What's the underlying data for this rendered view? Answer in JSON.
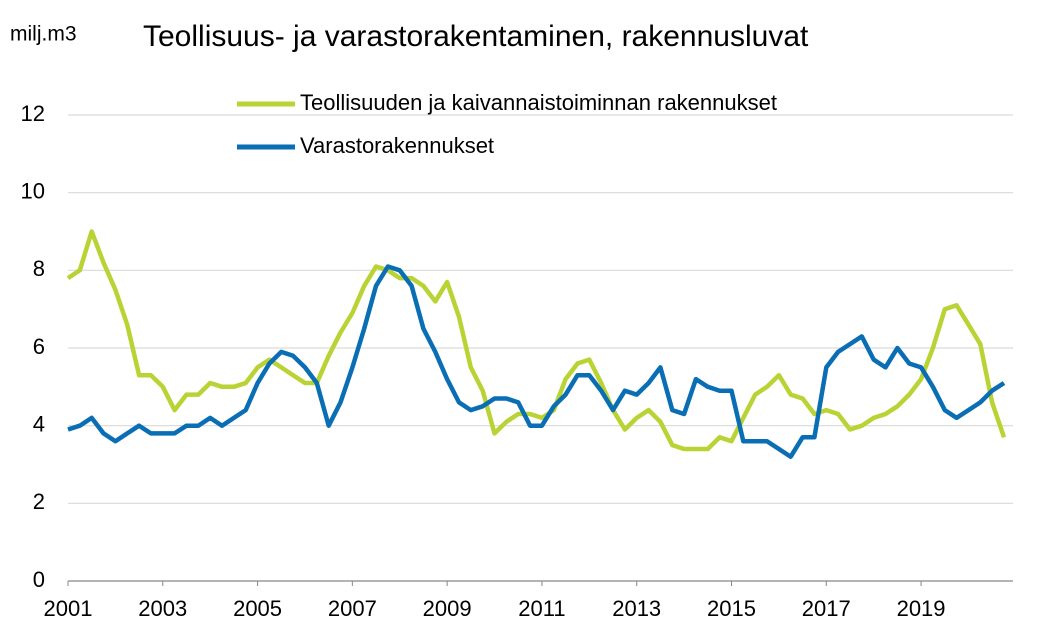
{
  "chart_data": {
    "type": "line",
    "title": "Teollisuus- ja varastorakentaminen, rakennusluvat",
    "y_label": "milj.m3",
    "x": [
      2001,
      2001.25,
      2001.5,
      2001.75,
      2002,
      2002.25,
      2002.5,
      2002.75,
      2003,
      2003.25,
      2003.5,
      2003.75,
      2004,
      2004.25,
      2004.5,
      2004.75,
      2005,
      2005.25,
      2005.5,
      2005.75,
      2006,
      2006.25,
      2006.5,
      2006.75,
      2007,
      2007.25,
      2007.5,
      2007.75,
      2008,
      2008.25,
      2008.5,
      2008.75,
      2009,
      2009.25,
      2009.5,
      2009.75,
      2010,
      2010.25,
      2010.5,
      2010.75,
      2011,
      2011.25,
      2011.5,
      2011.75,
      2012,
      2012.25,
      2012.5,
      2012.75,
      2013,
      2013.25,
      2013.5,
      2013.75,
      2014,
      2014.25,
      2014.5,
      2014.75,
      2015,
      2015.25,
      2015.5,
      2015.75,
      2016,
      2016.25,
      2016.5,
      2016.75,
      2017,
      2017.25,
      2017.5,
      2017.75,
      2018,
      2018.25,
      2018.5,
      2018.75,
      2019,
      2019.25,
      2019.5,
      2019.75,
      2020,
      2020.25,
      2020.5,
      2020.75
    ],
    "series": [
      {
        "name": "Teollisuuden ja kaivannaistoiminnan rakennukset",
        "color": "#b9d334",
        "values": [
          7.8,
          8.0,
          9.0,
          8.2,
          7.5,
          6.6,
          5.3,
          5.3,
          5.0,
          4.4,
          4.8,
          4.8,
          5.1,
          5.0,
          5.0,
          5.1,
          5.5,
          5.7,
          5.5,
          5.3,
          5.1,
          5.1,
          5.8,
          6.4,
          6.9,
          7.6,
          8.1,
          8.0,
          7.8,
          7.8,
          7.6,
          7.2,
          7.7,
          6.8,
          5.5,
          4.9,
          3.8,
          4.1,
          4.3,
          4.3,
          4.2,
          4.4,
          5.2,
          5.6,
          5.7,
          5.1,
          4.4,
          3.9,
          4.2,
          4.4,
          4.1,
          3.5,
          3.4,
          3.4,
          3.4,
          3.7,
          3.6,
          4.2,
          4.8,
          5.0,
          5.3,
          4.8,
          4.7,
          4.3,
          4.4,
          4.3,
          3.9,
          4.0,
          4.2,
          4.3,
          4.5,
          4.8,
          5.2,
          6.0,
          7.0,
          7.1,
          6.6,
          6.1,
          4.6,
          3.7
        ]
      },
      {
        "name": "Varastorakennukset",
        "color": "#0a6eb4",
        "values": [
          3.9,
          4.0,
          4.2,
          3.8,
          3.6,
          3.8,
          4.0,
          3.8,
          3.8,
          3.8,
          4.0,
          4.0,
          4.2,
          4.0,
          4.2,
          4.4,
          5.1,
          5.6,
          5.9,
          5.8,
          5.5,
          5.1,
          4.0,
          4.6,
          5.5,
          6.5,
          7.6,
          8.1,
          8.0,
          7.6,
          6.5,
          5.9,
          5.2,
          4.6,
          4.4,
          4.5,
          4.7,
          4.7,
          4.6,
          4.0,
          4.0,
          4.5,
          4.8,
          5.3,
          5.3,
          4.9,
          4.4,
          4.9,
          4.8,
          5.1,
          5.5,
          4.4,
          4.3,
          5.2,
          5.0,
          4.9,
          4.9,
          3.6,
          3.6,
          3.6,
          3.4,
          3.2,
          3.7,
          3.7,
          5.5,
          5.9,
          6.1,
          6.3,
          5.7,
          5.5,
          6.0,
          5.6,
          5.5,
          5.0,
          4.4,
          4.2,
          4.4,
          4.6,
          4.9,
          5.1
        ]
      }
    ],
    "xlim": [
      2001,
      2020.94
    ],
    "xticks": [
      2001,
      2003,
      2005,
      2007,
      2009,
      2011,
      2013,
      2015,
      2017,
      2019
    ],
    "ylim": [
      0,
      12
    ],
    "yticks": [
      0,
      2,
      4,
      6,
      8,
      10,
      12
    ],
    "grid": true
  }
}
